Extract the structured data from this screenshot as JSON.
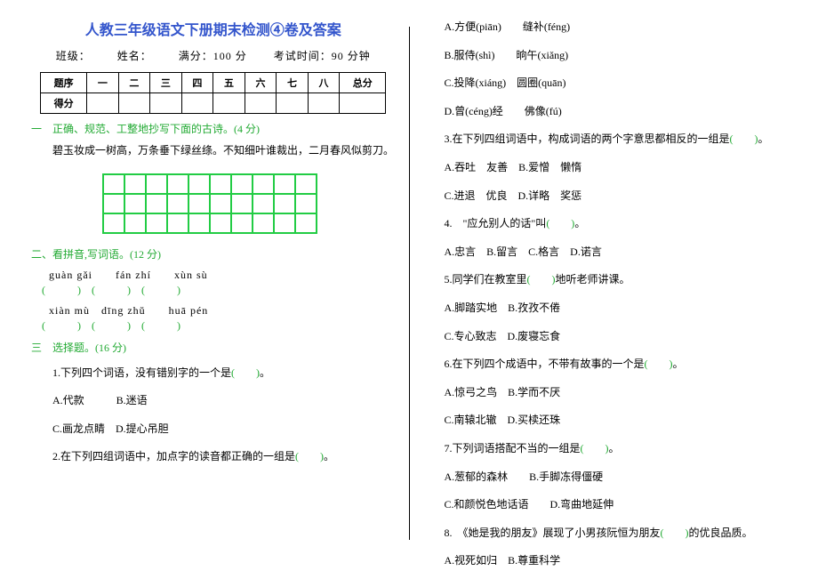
{
  "colors": {
    "title": "#3355cc",
    "green": "#22aa33",
    "grid": "#22cc44",
    "text": "#000000",
    "bg": "#ffffff"
  },
  "title": "人教三年级语文下册期末检测④卷及答案",
  "header": {
    "class_label": "班级：",
    "name_label": "姓名：",
    "full_score": "满分：100 分",
    "exam_time": "考试时间：90 分钟"
  },
  "score_table": {
    "headers": [
      "题序",
      "一",
      "二",
      "三",
      "四",
      "五",
      "六",
      "七",
      "八",
      "总分"
    ],
    "row_label": "得分"
  },
  "sec1": {
    "header": "一　正确、规范、工整地抄写下面的古诗。(4 分)",
    "poem": "碧玉妆成一树高，万条垂下绿丝绦。不知细叶谁裁出，二月春风似剪刀。",
    "grid": {
      "rows": 3,
      "cols": 10
    }
  },
  "sec2": {
    "header": "二、看拼音,写词语。(12 分)",
    "row1_pinyin": "guàn  gǎi  fán  zhí  xùn  sù",
    "row2_pinyin": "xiàn  mù dīng zhǔ  huā  pén",
    "paren_group": "(   ) (   ) (   )"
  },
  "sec3": {
    "header": "三　选择题。(16 分)",
    "q1": "1.下列四个词语，没有错别字的一个是(　　)。",
    "q1_a": "A.代款　　　B.迷语",
    "q1_c": "C.画龙点睛　D.提心吊胆",
    "q2": "2.在下列四组词语中，加点字的读音都正确的一组是(　　)。",
    "q2_a": "A.方便(piān)　　缝补(féng)",
    "q2_b": "B.服侍(shì)　　晌午(xiǎng)",
    "q2_c": "C.投降(xiáng)　圆圈(quān)",
    "q2_d": "D.曾(céng)经　　佛像(fú)",
    "q3": "3.在下列四组词语中，构成词语的两个字意思都相反的一组是(　　)。",
    "q3_a": "A.吞吐　友善　B.爱憎　懒惰",
    "q3_c": "C.进退　优良　D.详略　奖惩",
    "q4": "4.　\"应允别人的话\"叫(　　)。",
    "q4_opts": "A.忠言　B.留言　C.格言　D.诺言",
    "q5": "5.同学们在教室里(　　)地听老师讲课。",
    "q5_a": "A.脚踏实地　B.孜孜不倦",
    "q5_c": "C.专心致志　D.废寝忘食",
    "q6": "6.在下列四个成语中，不带有故事的一个是(　　)。",
    "q6_a": "A.惊弓之鸟　B.学而不厌",
    "q6_c": "C.南辕北辙　D.买椟还珠",
    "q7": "7.下列词语搭配不当的一组是(　　)。",
    "q7_a": "A.葱郁的森林　　B.手脚冻得僵硬",
    "q7_c": "C.和颜悦色地话语　　D.弯曲地延伸",
    "q8": "8.　《她是我的朋友》展现了小男孩阮恒为朋友(　　)的优良品质。",
    "q8_a": "A.视死如归　B.尊重科学"
  }
}
